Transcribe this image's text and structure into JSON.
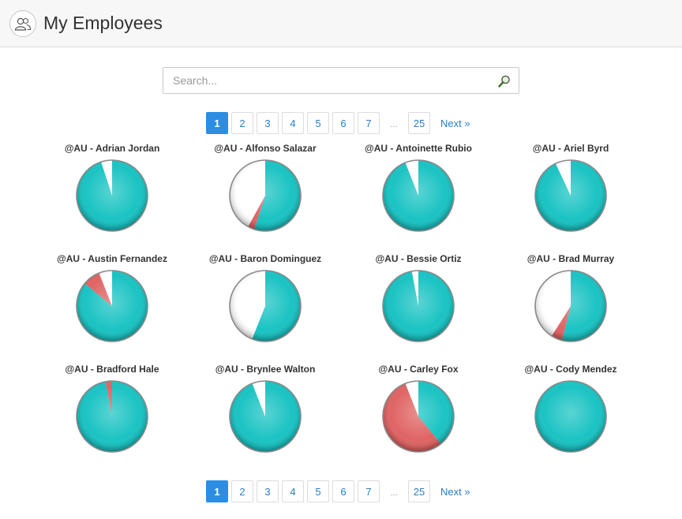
{
  "header": {
    "title": "My Employees",
    "icon": "users-icon"
  },
  "search": {
    "placeholder": "Search...",
    "value": "",
    "icon": "search-icon"
  },
  "pagination": {
    "pages": [
      "1",
      "2",
      "3",
      "4",
      "5",
      "6",
      "7"
    ],
    "active": "1",
    "ellipsis": "...",
    "last_page": "25",
    "next_label": "Next »"
  },
  "colors": {
    "primary": "#1bc3c3",
    "negative": "#e06464",
    "empty": "#ffffff",
    "active_page": "#2b8ee3",
    "link": "#2a7ec6"
  },
  "employees": [
    {
      "name": "@AU - Adrian Jordan",
      "good": 0.95,
      "bad": 0.0
    },
    {
      "name": "@AU - Alfonso Salazar",
      "good": 0.55,
      "bad": 0.03
    },
    {
      "name": "@AU - Antoinette Rubio",
      "good": 0.94,
      "bad": 0.0
    },
    {
      "name": "@AU - Ariel Byrd",
      "good": 0.93,
      "bad": 0.0
    },
    {
      "name": "@AU - Austin Fernandez",
      "good": 0.86,
      "bad": 0.08
    },
    {
      "name": "@AU - Baron Dominguez",
      "good": 0.56,
      "bad": 0.0
    },
    {
      "name": "@AU - Bessie Ortiz",
      "good": 0.97,
      "bad": 0.0
    },
    {
      "name": "@AU - Brad Murray",
      "good": 0.54,
      "bad": 0.05
    },
    {
      "name": "@AU - Bradford Hale",
      "good": 0.97,
      "bad": 0.03
    },
    {
      "name": "@AU - Brynlee Walton",
      "good": 0.94,
      "bad": 0.0
    },
    {
      "name": "@AU - Carley Fox",
      "good": 0.39,
      "bad": 0.55
    },
    {
      "name": "@AU - Cody Mendez",
      "good": 1.0,
      "bad": 0.0
    }
  ]
}
